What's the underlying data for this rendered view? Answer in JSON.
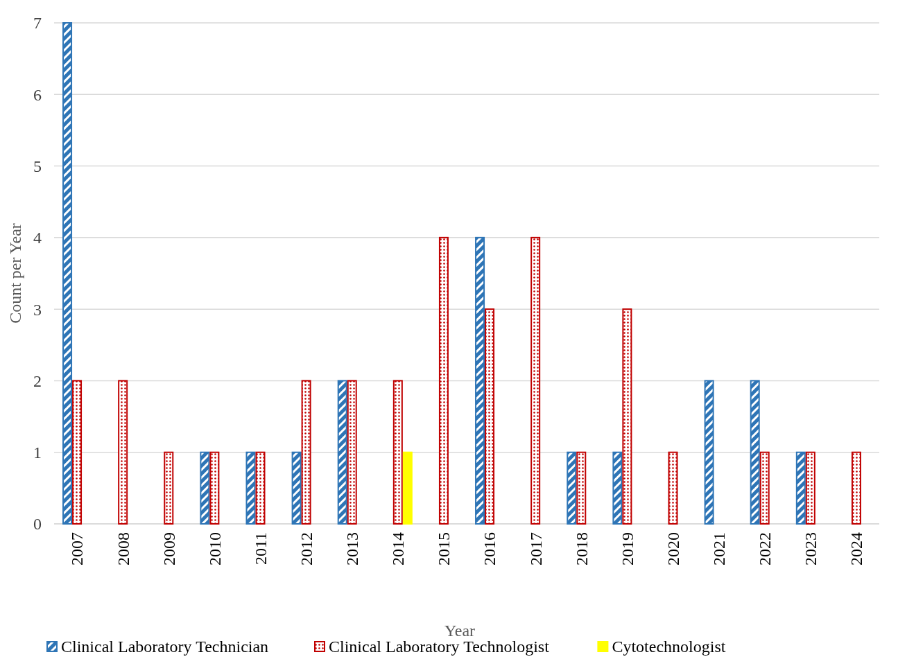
{
  "chart_data": {
    "type": "bar",
    "xlabel": "Year",
    "ylabel": "Count per Year",
    "categories": [
      "2007",
      "2008",
      "2009",
      "2010",
      "2011",
      "2012",
      "2013",
      "2014",
      "2015",
      "2016",
      "2017",
      "2018",
      "2019",
      "2020",
      "2021",
      "2022",
      "2023",
      "2024"
    ],
    "series": [
      {
        "name": "Clinical Laboratory Technician",
        "color": "#2e75b6",
        "values": [
          7,
          0,
          0,
          1,
          1,
          1,
          2,
          0,
          0,
          4,
          0,
          1,
          1,
          0,
          2,
          2,
          1,
          0
        ]
      },
      {
        "name": "Clinical Laboratory Technologist",
        "color": "#c00000",
        "values": [
          2,
          2,
          1,
          1,
          1,
          2,
          2,
          2,
          4,
          3,
          4,
          1,
          3,
          1,
          0,
          1,
          1,
          1
        ]
      },
      {
        "name": "Cytotechnologist",
        "color": "#ffff00",
        "values": [
          0,
          0,
          0,
          0,
          0,
          0,
          0,
          1,
          0,
          0,
          0,
          0,
          0,
          0,
          0,
          0,
          0,
          0
        ]
      }
    ],
    "ylim": [
      0,
      7
    ],
    "yticks": [
      0,
      1,
      2,
      3,
      4,
      5,
      6,
      7
    ],
    "grid": "y",
    "legend": "bottom"
  }
}
